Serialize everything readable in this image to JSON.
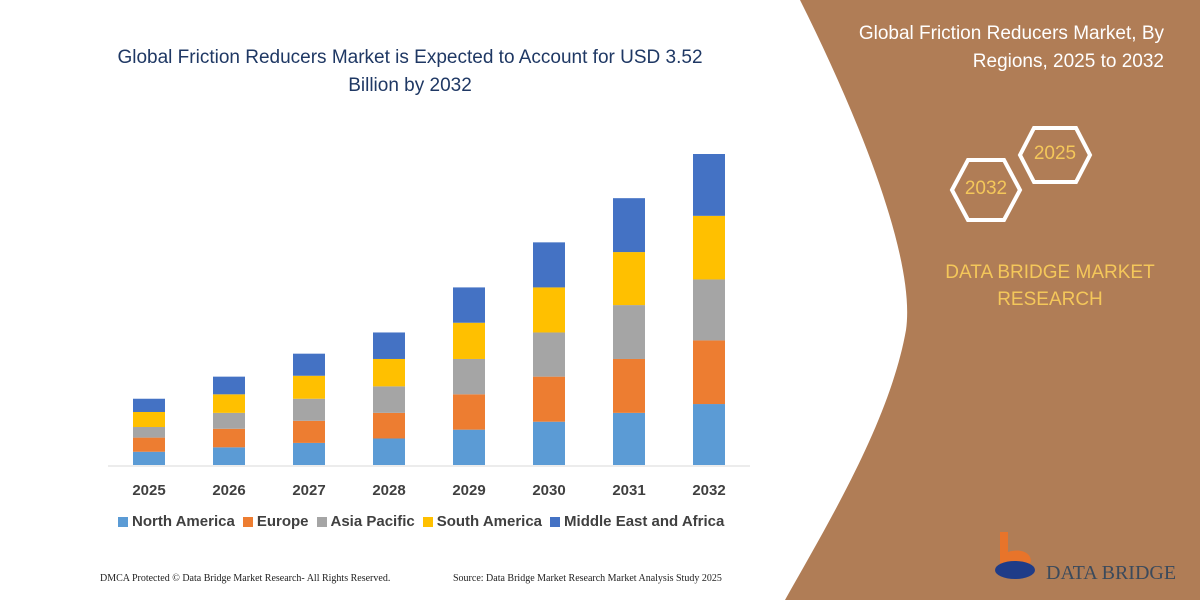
{
  "title": "Global Friction Reducers Market is Expected to Account for USD 3.52 Billion by 2032",
  "side_panel": {
    "title": "Global Friction Reducers Market, By Regions, 2025 to 2032",
    "hex_start": "2025",
    "hex_end": "2032",
    "brand": "DATA BRIDGE MARKET RESEARCH",
    "logo_text": "DATA BRIDGE",
    "panel_color": "#B07D56"
  },
  "footer": {
    "left": "DMCA Protected © Data Bridge Market Research-  All Rights Reserved.",
    "right": "Source: Data Bridge Market Research  Market Analysis Study 2025"
  },
  "chart_data": {
    "type": "bar",
    "stacked": true,
    "categories": [
      "2025",
      "2026",
      "2027",
      "2028",
      "2029",
      "2030",
      "2031",
      "2032"
    ],
    "series": [
      {
        "name": "North America",
        "color": "#5B9BD5",
        "values": [
          0.15,
          0.2,
          0.25,
          0.3,
          0.4,
          0.49,
          0.59,
          0.69
        ]
      },
      {
        "name": "Europe",
        "color": "#ED7D31",
        "values": [
          0.16,
          0.21,
          0.25,
          0.29,
          0.4,
          0.51,
          0.61,
          0.72
        ]
      },
      {
        "name": "Asia Pacific",
        "color": "#A5A5A5",
        "values": [
          0.12,
          0.18,
          0.25,
          0.3,
          0.4,
          0.5,
          0.61,
          0.69
        ]
      },
      {
        "name": "South America",
        "color": "#FFC000",
        "values": [
          0.17,
          0.21,
          0.26,
          0.31,
          0.41,
          0.51,
          0.6,
          0.72
        ]
      },
      {
        "name": "Middle East and Africa",
        "color": "#4472C4",
        "values": [
          0.15,
          0.2,
          0.25,
          0.3,
          0.4,
          0.51,
          0.61,
          0.7
        ]
      }
    ],
    "ylim": [
      0,
      3.52
    ],
    "grid": false,
    "legend_placement": "bottom"
  }
}
